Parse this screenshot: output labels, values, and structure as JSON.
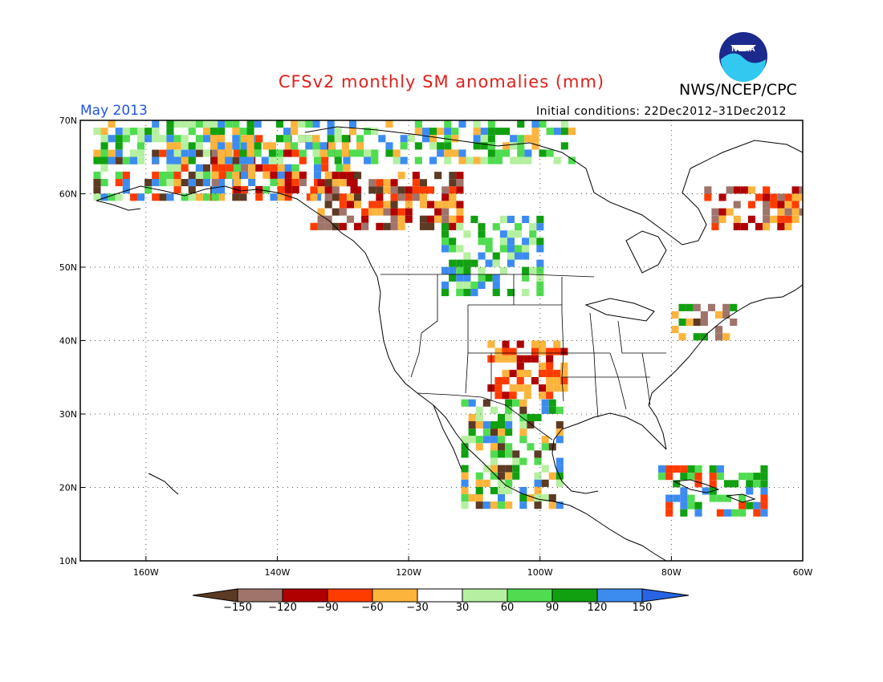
{
  "title": "CFSv2 monthly SM anomalies (mm)",
  "agency": "NWS/NCEP/CPC",
  "logo_text": "NOAA",
  "valid_period": "May 2013",
  "initial_conditions": "Initial conditions: 22Dec2012–31Dec2012",
  "map": {
    "lon_range": [
      -170,
      -60
    ],
    "lat_range": [
      10,
      70
    ],
    "lat_ticks": [
      "70N",
      "60N",
      "50N",
      "40N",
      "30N",
      "20N",
      "10N"
    ],
    "lon_ticks": [
      "160W",
      "140W",
      "120W",
      "100W",
      "80W",
      "60W"
    ]
  },
  "colorbar": {
    "labels": [
      "−150",
      "−120",
      "−90",
      "−60",
      "−30",
      "30",
      "60",
      "90",
      "120",
      "150"
    ],
    "colors": [
      "#5c3a24",
      "#a0746a",
      "#b00000",
      "#ff3c00",
      "#fdb43c",
      "#ffffff",
      "#b4f0a0",
      "#50dc50",
      "#10a010",
      "#3c8cf0",
      "#2864e6"
    ]
  },
  "anomaly_regions": [
    {
      "name": "alaska-west",
      "lon": [
        -168,
        -145
      ],
      "lat": [
        60,
        66
      ],
      "mix": [
        "#50dc50",
        "#b4f0a0",
        "#5c3a24",
        "#fdb43c",
        "#ff3c00",
        "#3c8cf0"
      ]
    },
    {
      "name": "alaska-interior",
      "lon": [
        -150,
        -128
      ],
      "lat": [
        60,
        68
      ],
      "mix": [
        "#b00000",
        "#ff3c00",
        "#fdb43c",
        "#50dc50",
        "#3c8cf0",
        "#a0746a"
      ]
    },
    {
      "name": "arctic-coast",
      "lon": [
        -168,
        -95
      ],
      "lat": [
        65,
        70
      ],
      "mix": [
        "#50dc50",
        "#b4f0a0",
        "#10a010",
        "#3c8cf0",
        "#fdb43c"
      ]
    },
    {
      "name": "yukon-bc",
      "lon": [
        -135,
        -112
      ],
      "lat": [
        56,
        63
      ],
      "mix": [
        "#b00000",
        "#ff3c00",
        "#fdb43c",
        "#a0746a",
        "#5c3a24"
      ]
    },
    {
      "name": "prairies",
      "lon": [
        -115,
        -100
      ],
      "lat": [
        47,
        57
      ],
      "mix": [
        "#10a010",
        "#50dc50",
        "#b4f0a0",
        "#3c8cf0"
      ]
    },
    {
      "name": "central-plains",
      "lon": [
        -108,
        -96
      ],
      "lat": [
        33,
        40
      ],
      "mix": [
        "#ff3c00",
        "#fdb43c",
        "#b00000",
        "#fdb43c"
      ]
    },
    {
      "name": "mexico",
      "lon": [
        -112,
        -97
      ],
      "lat": [
        18,
        32
      ],
      "mix": [
        "#50dc50",
        "#b4f0a0",
        "#5c3a24",
        "#3c8cf0",
        "#10a010",
        "#fdb43c"
      ]
    },
    {
      "name": "quebec",
      "lon": [
        -75,
        -60
      ],
      "lat": [
        56,
        61
      ],
      "mix": [
        "#ff3c00",
        "#fdb43c",
        "#b00000",
        "#a0746a"
      ]
    },
    {
      "name": "great-lakes",
      "lon": [
        -80,
        -70
      ],
      "lat": [
        41,
        45
      ],
      "mix": [
        "#fdb43c",
        "#5c3a24",
        "#a0746a",
        "#10a010"
      ]
    },
    {
      "name": "caribbean",
      "lon": [
        -82,
        -66
      ],
      "lat": [
        17,
        23
      ],
      "mix": [
        "#50dc50",
        "#10a010",
        "#3c8cf0",
        "#ff3c00"
      ]
    }
  ]
}
